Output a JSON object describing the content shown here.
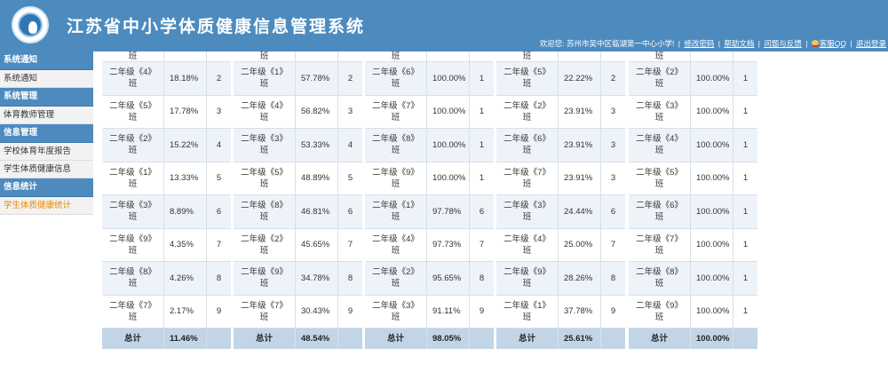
{
  "header": {
    "title": "江苏省中小学体质健康信息管理系统",
    "welcome": "欢迎您: 苏州市吴中区临湖第一中心小学!",
    "links": [
      "修改密码",
      "帮助文档",
      "问题与反馈"
    ],
    "qq": "客服QQ",
    "logout": "退出登录"
  },
  "sidebar": {
    "groups": [
      {
        "head": "系统通知",
        "items": [
          "系统通知"
        ]
      },
      {
        "head": "系统管理",
        "items": [
          "体育教师管理"
        ]
      },
      {
        "head": "信息管理",
        "items": [
          "学校体育年度报告",
          "学生体质健康信息"
        ]
      },
      {
        "head": "信息统计",
        "items": [
          "学生体质健康统计"
        ]
      }
    ],
    "active_item": "学生体质健康统计"
  },
  "tables": [
    {
      "top_fragment": "班",
      "rows": [
        {
          "cls": "二年级《4》班",
          "pct": "18.18%",
          "rank": "2"
        },
        {
          "cls": "二年级《5》班",
          "pct": "17.78%",
          "rank": "3"
        },
        {
          "cls": "二年级《2》班",
          "pct": "15.22%",
          "rank": "4"
        },
        {
          "cls": "二年级《1》班",
          "pct": "13.33%",
          "rank": "5"
        },
        {
          "cls": "二年级《3》班",
          "pct": "8.89%",
          "rank": "6"
        },
        {
          "cls": "二年级《9》班",
          "pct": "4.35%",
          "rank": "7"
        },
        {
          "cls": "二年级《8》班",
          "pct": "4.26%",
          "rank": "8"
        },
        {
          "cls": "二年级《7》班",
          "pct": "2.17%",
          "rank": "9"
        }
      ],
      "total_label": "总计",
      "total_value": "11.46%"
    },
    {
      "top_fragment": "班",
      "rows": [
        {
          "cls": "二年级《1》班",
          "pct": "57.78%",
          "rank": "2"
        },
        {
          "cls": "二年级《4》班",
          "pct": "56.82%",
          "rank": "3"
        },
        {
          "cls": "二年级《3》班",
          "pct": "53.33%",
          "rank": "4"
        },
        {
          "cls": "二年级《5》班",
          "pct": "48.89%",
          "rank": "5"
        },
        {
          "cls": "二年级《8》班",
          "pct": "46.81%",
          "rank": "6"
        },
        {
          "cls": "二年级《2》班",
          "pct": "45.65%",
          "rank": "7"
        },
        {
          "cls": "二年级《9》班",
          "pct": "34.78%",
          "rank": "8"
        },
        {
          "cls": "二年级《7》班",
          "pct": "30.43%",
          "rank": "9"
        }
      ],
      "total_label": "总计",
      "total_value": "48.54%"
    },
    {
      "top_fragment": "班",
      "rows": [
        {
          "cls": "二年级《6》班",
          "pct": "100.00%",
          "rank": "1"
        },
        {
          "cls": "二年级《7》班",
          "pct": "100.00%",
          "rank": "1"
        },
        {
          "cls": "二年级《8》班",
          "pct": "100.00%",
          "rank": "1"
        },
        {
          "cls": "二年级《9》班",
          "pct": "100.00%",
          "rank": "1"
        },
        {
          "cls": "二年级《1》班",
          "pct": "97.78%",
          "rank": "6"
        },
        {
          "cls": "二年级《4》班",
          "pct": "97.73%",
          "rank": "7"
        },
        {
          "cls": "二年级《2》班",
          "pct": "95.65%",
          "rank": "8"
        },
        {
          "cls": "二年级《3》班",
          "pct": "91.11%",
          "rank": "9"
        }
      ],
      "total_label": "总计",
      "total_value": "98.05%"
    },
    {
      "top_fragment": "班",
      "rows": [
        {
          "cls": "二年级《5》班",
          "pct": "22.22%",
          "rank": "2"
        },
        {
          "cls": "二年级《2》班",
          "pct": "23.91%",
          "rank": "3"
        },
        {
          "cls": "二年级《6》班",
          "pct": "23.91%",
          "rank": "3"
        },
        {
          "cls": "二年级《7》班",
          "pct": "23.91%",
          "rank": "3"
        },
        {
          "cls": "二年级《3》班",
          "pct": "24.44%",
          "rank": "6"
        },
        {
          "cls": "二年级《4》班",
          "pct": "25.00%",
          "rank": "7"
        },
        {
          "cls": "二年级《9》班",
          "pct": "28.26%",
          "rank": "8"
        },
        {
          "cls": "二年级《1》班",
          "pct": "37.78%",
          "rank": "9"
        }
      ],
      "total_label": "总计",
      "total_value": "25.61%"
    },
    {
      "top_fragment": "班",
      "rows": [
        {
          "cls": "二年级《2》班",
          "pct": "100.00%",
          "rank": "1"
        },
        {
          "cls": "二年级《3》班",
          "pct": "100.00%",
          "rank": "1"
        },
        {
          "cls": "二年级《4》班",
          "pct": "100.00%",
          "rank": "1"
        },
        {
          "cls": "二年级《5》班",
          "pct": "100.00%",
          "rank": "1"
        },
        {
          "cls": "二年级《6》班",
          "pct": "100.00%",
          "rank": "1"
        },
        {
          "cls": "二年级《7》班",
          "pct": "100.00%",
          "rank": "1"
        },
        {
          "cls": "二年级《8》班",
          "pct": "100.00%",
          "rank": "1"
        },
        {
          "cls": "二年级《9》班",
          "pct": "100.00%",
          "rank": "1"
        }
      ],
      "total_label": "总计",
      "total_value": "100.00%"
    }
  ],
  "colors": {
    "header_bg": "#4d8bbf",
    "active_menu": "#e88a00",
    "total_row_bg": "#c2d5e6",
    "even_row_bg": "#eef3f9"
  }
}
